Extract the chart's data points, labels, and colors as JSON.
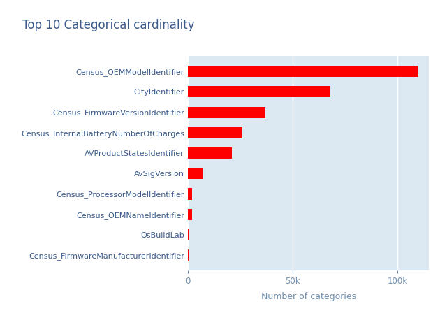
{
  "title": "Top 10 Categorical cardinality",
  "xlabel": "Number of categories",
  "categories": [
    "Census_FirmwareManufacturerIdentifier",
    "OsBuildLab",
    "Census_OEMNameIdentifier",
    "Census_ProcessorModelIdentifier",
    "AvSigVersion",
    "AVProductStatesIdentifier",
    "Census_InternalBatteryNumberOfCharges",
    "Census_FirmwareVersionIdentifier",
    "CityIdentifier",
    "Census_OEMModelIdentifier"
  ],
  "values": [
    350,
    800,
    2000,
    2200,
    7500,
    21000,
    26000,
    37000,
    68000,
    110000
  ],
  "bar_color": "#ff0000",
  "plot_bg_color": "#dce9f3",
  "fig_bg_color": "#ffffff",
  "title_color": "#3a5a8a",
  "label_color": "#3a5a8a",
  "tick_color": "#7090b0",
  "title_fontsize": 12,
  "label_fontsize": 8,
  "tick_fontsize": 8.5,
  "xlabel_fontsize": 9,
  "xlim": [
    0,
    115000
  ],
  "xticks": [
    0,
    50000,
    100000
  ],
  "xtick_labels": [
    "0",
    "50k",
    "100k"
  ]
}
